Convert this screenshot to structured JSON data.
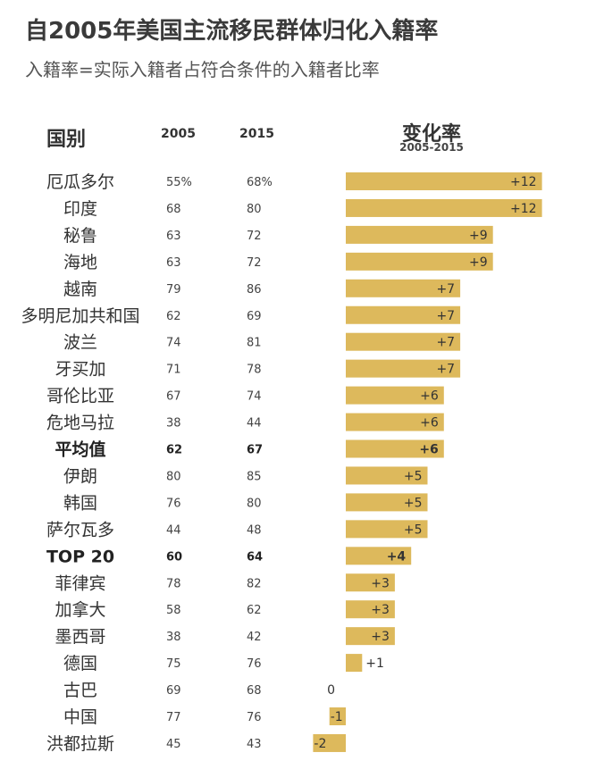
{
  "header": {
    "title": "自2005年美国主流移民群体归化入籍率",
    "subtitle": "入籍率=实际入籍者占符合条件的入籍者比率",
    "col_country": "国别",
    "col_2005": "2005",
    "col_2015": "2015",
    "col_change": "变化率",
    "col_change_range": "2005-2015"
  },
  "colors": {
    "bar": "#ddb95c"
  },
  "chart_data": {
    "type": "bar",
    "orientation": "horizontal",
    "categories": [
      "厄瓜多尔",
      "印度",
      "秘鲁",
      "海地",
      "越南",
      "多明尼加共和国",
      "波兰",
      "牙买加",
      "哥伦比亚",
      "危地马拉",
      "平均值",
      "伊朗",
      "韩国",
      "萨尔瓦多",
      "TOP 20",
      "菲律宾",
      "加拿大",
      "墨西哥",
      "德国",
      "古巴",
      "中国",
      "洪都拉斯"
    ],
    "rate_2005": [
      "55%",
      "68",
      "63",
      "63",
      "79",
      "62",
      "74",
      "71",
      "67",
      "38",
      "62",
      "80",
      "76",
      "44",
      "60",
      "78",
      "58",
      "38",
      "75",
      "69",
      "77",
      "45"
    ],
    "rate_2015": [
      "68%",
      "80",
      "72",
      "72",
      "86",
      "69",
      "81",
      "78",
      "74",
      "44",
      "67",
      "85",
      "80",
      "48",
      "64",
      "82",
      "62",
      "42",
      "76",
      "68",
      "76",
      "43"
    ],
    "values": [
      12,
      12,
      9,
      9,
      7,
      7,
      7,
      7,
      6,
      6,
      6,
      5,
      5,
      5,
      4,
      3,
      3,
      3,
      1,
      0,
      -1,
      -2
    ],
    "labels": [
      "+12",
      "+12",
      "+9",
      "+9",
      "+7",
      "+7",
      "+7",
      "+7",
      "+6",
      "+6",
      "+6",
      "+5",
      "+5",
      "+5",
      "+4",
      "+3",
      "+3",
      "+3",
      "+1",
      "0",
      "-1",
      "-2"
    ],
    "bold_rows": [
      "平均值",
      "TOP 20"
    ],
    "xlim": [
      -2,
      12
    ]
  }
}
